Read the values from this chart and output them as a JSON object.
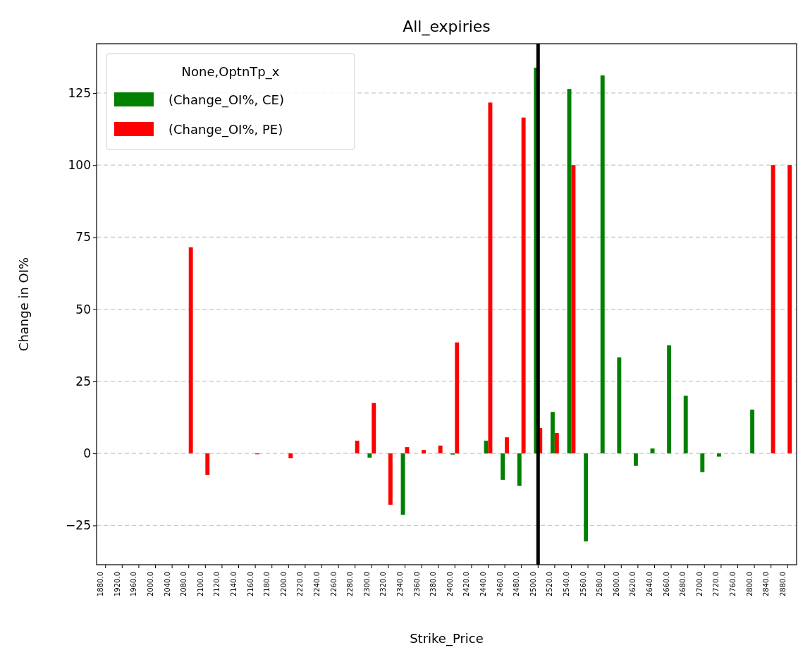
{
  "chart_data": {
    "type": "bar",
    "title": "All_expiries",
    "xlabel": "Strike_Price",
    "ylabel": "Change in OI%",
    "legend_title": "None,OptnTp_x",
    "categories": [
      "1880.0",
      "1920.0",
      "1960.0",
      "2000.0",
      "2040.0",
      "2080.0",
      "2100.0",
      "2120.0",
      "2140.0",
      "2160.0",
      "2180.0",
      "2200.0",
      "2220.0",
      "2240.0",
      "2260.0",
      "2280.0",
      "2300.0",
      "2320.0",
      "2340.0",
      "2360.0",
      "2380.0",
      "2400.0",
      "2420.0",
      "2440.0",
      "2460.0",
      "2480.0",
      "2500.0",
      "2520.0",
      "2540.0",
      "2560.0",
      "2580.0",
      "2600.0",
      "2620.0",
      "2640.0",
      "2660.0",
      "2680.0",
      "2700.0",
      "2720.0",
      "2760.0",
      "2800.0",
      "2840.0",
      "2880.0"
    ],
    "series": [
      {
        "name": "(Change_OI%, CE)",
        "color": "#008000",
        "values": [
          0,
          0,
          0,
          0,
          0,
          0,
          0,
          0,
          0,
          0,
          0,
          0,
          0,
          0,
          0,
          0,
          -1.5,
          0,
          -21.3,
          0,
          0,
          -0.4,
          0,
          4.4,
          -9.2,
          -11.2,
          133.8,
          14.4,
          126.4,
          -30.5,
          131.1,
          33.3,
          -4.3,
          1.7,
          37.5,
          20,
          -6.5,
          -1.1,
          0,
          15.2,
          0,
          0
        ]
      },
      {
        "name": "(Change_OI%, PE)",
        "color": "#ff0000",
        "values": [
          0,
          0,
          0,
          0,
          0,
          71.5,
          -7.5,
          0,
          0,
          -0.3,
          0,
          -1.7,
          0,
          0,
          0,
          4.4,
          17.5,
          -17.8,
          2.2,
          1.2,
          2.7,
          38.5,
          0,
          121.7,
          5.6,
          116.5,
          8.8,
          7.1,
          100,
          0,
          0,
          0,
          0,
          0,
          0,
          0,
          0,
          0,
          0,
          0,
          100,
          100
        ]
      }
    ],
    "ylim": [
      -38.6,
      142.1
    ],
    "yticks": [
      {
        "value": -25,
        "label": "−25"
      },
      0,
      25,
      50,
      75,
      100,
      125
    ],
    "grid": "y",
    "legend": "top left",
    "ref_lines": [
      {
        "axis": "x",
        "value": "2500.0",
        "color": "#000000"
      }
    ]
  }
}
